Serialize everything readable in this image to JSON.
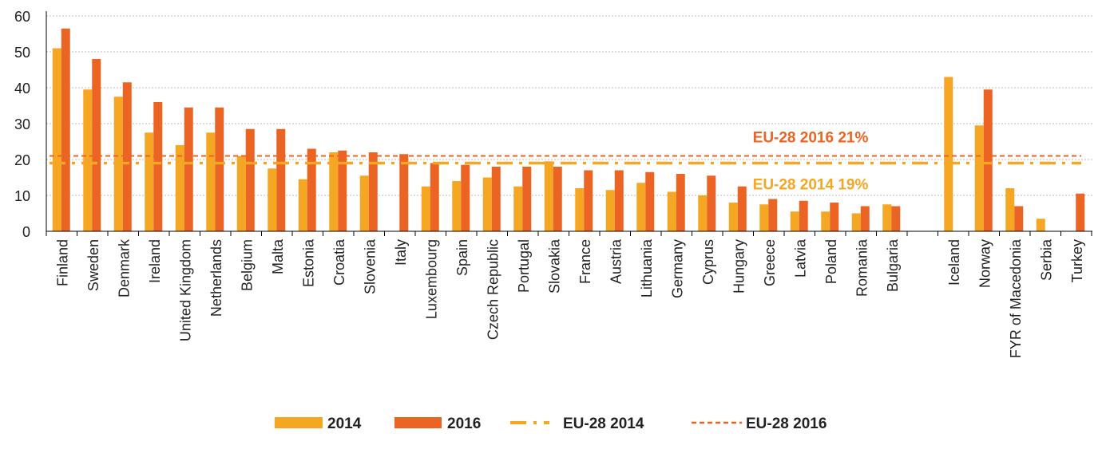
{
  "chart_data": {
    "type": "bar",
    "categories": [
      "Finland",
      "Sweden",
      "Denmark",
      "Ireland",
      "United Kingdom",
      "Netherlands",
      "Belgium",
      "Malta",
      "Estonia",
      "Croatia",
      "Slovenia",
      "Italy",
      "Luxembourg",
      "Spain",
      "Czech Republic",
      "Portugal",
      "Slovakia",
      "France",
      "Austria",
      "Lithuania",
      "Germany",
      "Cyprus",
      "Hungary",
      "Greece",
      "Latvia",
      "Poland",
      "Romania",
      "Bulgaria",
      "",
      "Iceland",
      "Norway",
      "FYR of Macedonia",
      "Serbia",
      "Turkey"
    ],
    "series": [
      {
        "name": "2014",
        "color": "#f5a623",
        "values": [
          51,
          39.5,
          37.5,
          27.5,
          24,
          27.5,
          21,
          17.5,
          14.5,
          22,
          15.5,
          null,
          12.5,
          14,
          15,
          12.5,
          19.5,
          12,
          11.5,
          13.5,
          11,
          10,
          8,
          7.5,
          5.5,
          5.5,
          5,
          7.5,
          null,
          43,
          29.5,
          12,
          3.5,
          null
        ]
      },
      {
        "name": "2016",
        "color": "#eb6423",
        "values": [
          56.5,
          48,
          41.5,
          36,
          34.5,
          34.5,
          28.5,
          28.5,
          23,
          22.5,
          22,
          21.5,
          19,
          18.5,
          18,
          18,
          18,
          17,
          17,
          16.5,
          16,
          15.5,
          12.5,
          9,
          8.5,
          8,
          7,
          7,
          null,
          null,
          39.5,
          7,
          null,
          10.5
        ]
      }
    ],
    "reference_lines": [
      {
        "name": "EU-28 2014",
        "value": 19,
        "label": "EU-28  2014  19%",
        "color": "#f5a623",
        "style": "dash-dot"
      },
      {
        "name": "EU-28 2016",
        "value": 21,
        "label": "EU-28  2016  21%",
        "color": "#eb6423",
        "style": "dashed"
      }
    ],
    "yticks": [
      "0",
      "10",
      "20",
      "30",
      "40",
      "50",
      "60"
    ],
    "ylim": [
      0,
      60
    ],
    "grid": true,
    "legend_position": "bottom",
    "legend": [
      {
        "label": "2014",
        "kind": "bar",
        "color": "#f5a623"
      },
      {
        "label": "2016",
        "kind": "bar",
        "color": "#eb6423"
      },
      {
        "label": "EU-28 2014",
        "kind": "dash-dot",
        "color": "#f5a623"
      },
      {
        "label": "EU-28 2016",
        "kind": "dashed",
        "color": "#eb6423"
      }
    ]
  }
}
